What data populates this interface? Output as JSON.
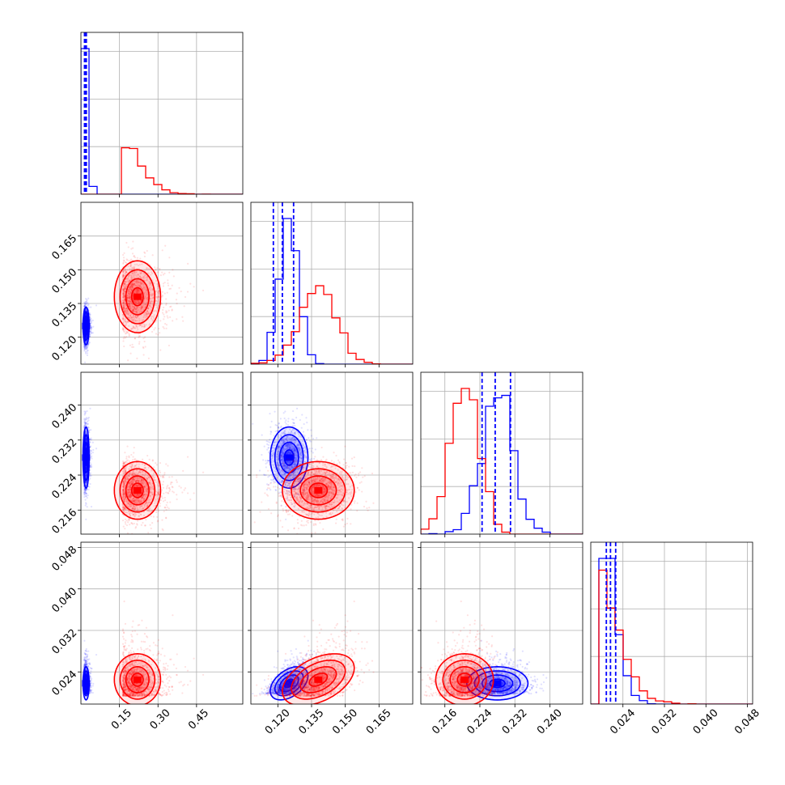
{
  "chart_data": {
    "type": "scatter",
    "subtype": "corner-plot",
    "parameters": 4,
    "grid": true,
    "series": [
      {
        "color": "#0000ff",
        "means": [
          0.02,
          0.125,
          0.228,
          0.0218
        ],
        "sds": [
          0.006,
          0.0042,
          0.0035,
          0.0016
        ]
      },
      {
        "color": "#ff0000",
        "means": [
          0.22,
          0.138,
          0.2205,
          0.0225
        ],
        "sds": [
          0.045,
          0.008,
          0.0033,
          0.0025
        ]
      }
    ],
    "correlations": [
      [
        1,
        0,
        0,
        0
      ],
      [
        0,
        1,
        0,
        0.45
      ],
      [
        0,
        0,
        1,
        0
      ],
      [
        0,
        0.45,
        0,
        1
      ]
    ],
    "axes": [
      {
        "range": [
          0.0,
          0.63
        ],
        "ticks": [
          "0.15",
          "0.30",
          "0.45"
        ],
        "tick_values": [
          0.15,
          0.3,
          0.45
        ]
      },
      {
        "range": [
          0.108,
          0.18
        ],
        "ticks": [
          "0.120",
          "0.135",
          "0.150",
          "0.165"
        ],
        "tick_values": [
          0.12,
          0.135,
          0.15,
          0.165
        ]
      },
      {
        "range": [
          0.2105,
          0.2475
        ],
        "ticks": [
          "0.216",
          "0.224",
          "0.232",
          "0.240"
        ],
        "tick_values": [
          0.216,
          0.224,
          0.232,
          0.24
        ]
      },
      {
        "range": [
          0.0178,
          0.049
        ],
        "ticks": [
          "0.024",
          "0.032",
          "0.040",
          "0.048"
        ],
        "tick_values": [
          0.024,
          0.032,
          0.04,
          0.048
        ]
      }
    ],
    "quantile_lines": {
      "color": "#0000ff",
      "style": "dashed",
      "diagonal": [
        [
          0.014,
          0.017,
          0.021
        ],
        [
          0.118,
          0.122,
          0.127
        ],
        [
          0.2245,
          0.2275,
          0.231
        ],
        [
          0.0208,
          0.0216,
          0.0226
        ]
      ]
    }
  }
}
